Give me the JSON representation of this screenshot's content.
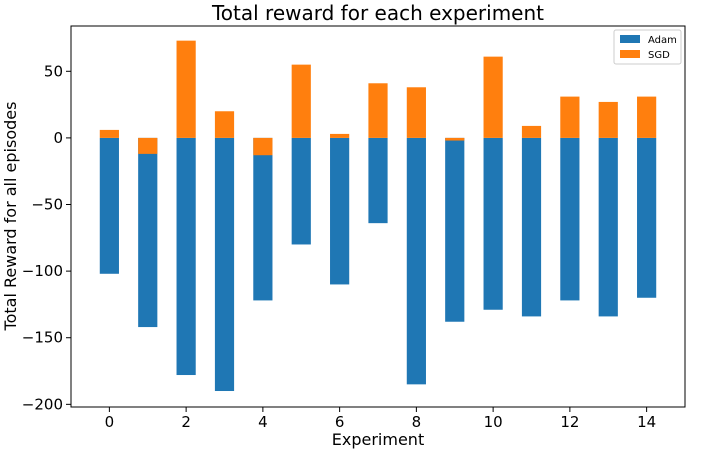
{
  "chart_data": {
    "type": "bar",
    "stacked": true,
    "title": "Total reward for each experiment",
    "xlabel": "Experiment",
    "ylabel": "Total Reward for all episodes",
    "x": [
      0,
      1,
      2,
      3,
      4,
      5,
      6,
      7,
      8,
      9,
      10,
      11,
      12,
      13,
      14
    ],
    "xticks": [
      0,
      2,
      4,
      6,
      8,
      10,
      12,
      14
    ],
    "yticks": [
      -200,
      -150,
      -100,
      -50,
      0,
      50
    ],
    "xlim": [
      -1,
      15
    ],
    "ylim": [
      -202,
      84
    ],
    "grid": false,
    "legend_position": "top-right",
    "series": [
      {
        "name": "Adam",
        "color": "#1f77b4",
        "values": [
          -102,
          -142,
          -178,
          -190,
          -122,
          -80,
          -110,
          -64,
          -185,
          -138,
          -129,
          -134,
          -122,
          -134,
          -120
        ]
      },
      {
        "name": "SGD",
        "color": "#ff7f0e",
        "values": [
          6,
          -12,
          73,
          20,
          -13,
          55,
          3,
          41,
          38,
          -2,
          61,
          9,
          31,
          27,
          31
        ]
      }
    ]
  }
}
